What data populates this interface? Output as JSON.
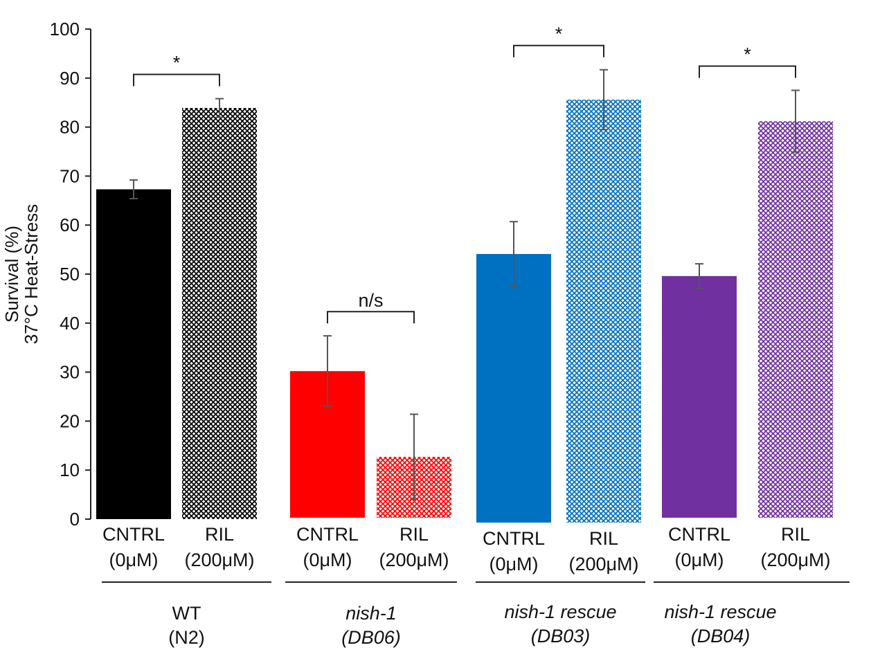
{
  "chart_data": {
    "type": "bar",
    "title": "",
    "ylabel_lines": [
      "Survival (%)",
      "37°C Heat-Stress"
    ],
    "xlabel": "",
    "ylim": [
      0,
      100
    ],
    "yticks": [
      0,
      10,
      20,
      30,
      40,
      50,
      60,
      70,
      80,
      90,
      100
    ],
    "groups": [
      {
        "label_line1": "WT",
        "label_line2": "(N2)",
        "italic": false,
        "bars": [
          {
            "label_line1": "CNTRL",
            "label_line2": "(0μM)",
            "value": 67.3,
            "error": 1.9,
            "color": "#000000",
            "pattern": "solid"
          },
          {
            "label_line1": "RIL",
            "label_line2": "(200μM)",
            "value": 83.9,
            "error": 1.9,
            "color": "#000000",
            "pattern": "crosshatch"
          }
        ],
        "significance": "*"
      },
      {
        "label_line1": "nish-1",
        "label_line2": "(DB06)",
        "italic": true,
        "bars": [
          {
            "label_line1": "CNTRL",
            "label_line2": "(0μM)",
            "value": 30.2,
            "error": 7.2,
            "color": "#ff0000",
            "pattern": "solid"
          },
          {
            "label_line1": "RIL",
            "label_line2": "(200μM)",
            "value": 12.7,
            "error": 8.7,
            "color": "#ff0000",
            "pattern": "crosshatch"
          }
        ],
        "significance": "n/s"
      },
      {
        "label_line1": "nish-1 rescue",
        "label_line2": "(DB03)",
        "italic": true,
        "bars": [
          {
            "label_line1": "CNTRL",
            "label_line2": "(0μM)",
            "value": 54.1,
            "error": 6.6,
            "color": "#0070c0",
            "pattern": "solid"
          },
          {
            "label_line1": "RIL",
            "label_line2": "(200μM)",
            "value": 85.6,
            "error": 6.1,
            "color": "#0070c0",
            "pattern": "crosshatch"
          }
        ],
        "significance": "*"
      },
      {
        "label_line1": "nish-1 rescue",
        "label_line2": "(DB04)",
        "italic": true,
        "bars": [
          {
            "label_line1": "CNTRL",
            "label_line2": "(0μM)",
            "value": 49.6,
            "error": 2.5,
            "color": "#7030a0",
            "pattern": "solid"
          },
          {
            "label_line1": "RIL",
            "label_line2": "(200μM)",
            "value": 81.2,
            "error": 6.3,
            "color": "#7030a0",
            "pattern": "crosshatch"
          }
        ],
        "significance": "*"
      }
    ]
  }
}
